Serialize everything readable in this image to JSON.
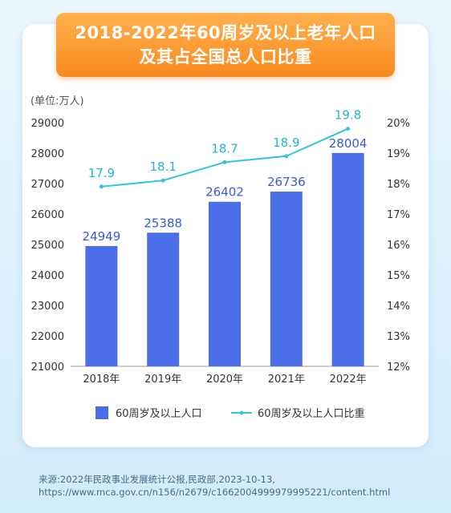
{
  "title": {
    "line1": "2018-2022年60周岁及以上老年人口",
    "line2": "及其占全国总人口比重"
  },
  "chart_data": {
    "type": "bar+line",
    "unit_label": "(单位:万人)",
    "categories": [
      "2018年",
      "2019年",
      "2020年",
      "2021年",
      "2022年"
    ],
    "series": [
      {
        "name": "60周岁及以上人口",
        "type": "bar",
        "axis": "left",
        "values": [
          24949,
          25388,
          26402,
          26736,
          28004
        ],
        "color": "#4a6ee8"
      },
      {
        "name": "60周岁及以上人口比重",
        "type": "line",
        "axis": "right",
        "values": [
          17.9,
          18.1,
          18.7,
          18.9,
          19.8
        ],
        "color": "#33c4d6"
      }
    ],
    "left_axis": {
      "min": 21000,
      "max": 29000,
      "step": 1000,
      "ticks": [
        "21000",
        "22000",
        "23000",
        "24000",
        "25000",
        "26000",
        "27000",
        "28000",
        "29000"
      ]
    },
    "right_axis": {
      "min": 12,
      "max": 20,
      "step": 1,
      "ticks": [
        "12%",
        "13%",
        "14%",
        "15%",
        "16%",
        "17%",
        "18%",
        "19%",
        "20%"
      ]
    },
    "grid": false,
    "legend_position": "bottom"
  },
  "source": {
    "line1": "来源:2022年民政事业发展统计公报,民政部,2023-10-13,",
    "line2": "https://www.mca.gov.cn/n156/n2679/c1662004999979995221/content.html"
  }
}
